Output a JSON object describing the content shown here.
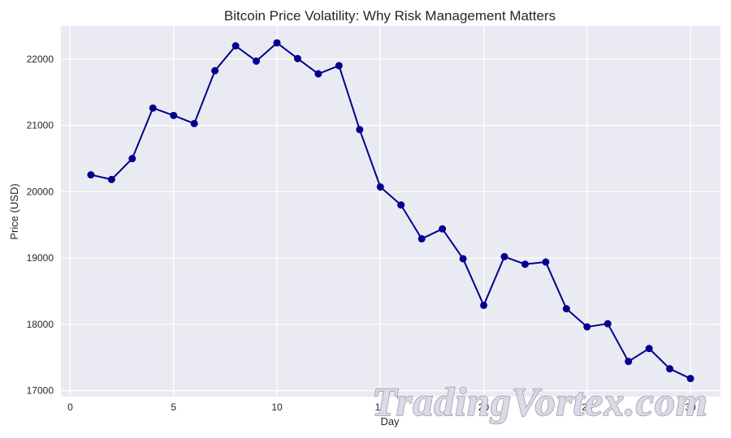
{
  "chart_data": {
    "type": "line",
    "title": "Bitcoin Price Volatility: Why Risk Management Matters",
    "xlabel": "Day",
    "ylabel": "Price (USD)",
    "x": [
      1,
      2,
      3,
      4,
      5,
      6,
      7,
      8,
      9,
      10,
      11,
      12,
      13,
      14,
      15,
      16,
      17,
      18,
      19,
      20,
      21,
      22,
      23,
      24,
      25,
      26,
      27,
      28,
      29,
      30
    ],
    "series": [
      {
        "name": "Price",
        "color": "#00008b",
        "marker": "circle",
        "values": [
          20255,
          20185,
          20500,
          21262,
          21150,
          21028,
          21825,
          22200,
          21970,
          22245,
          22008,
          21778,
          21902,
          20937,
          20072,
          19800,
          19290,
          19440,
          18990,
          18287,
          19021,
          18907,
          18940,
          18235,
          17962,
          18010,
          17440,
          17636,
          17330,
          17183
        ]
      }
    ],
    "xticks": [
      "0",
      "5",
      "10",
      "15",
      "20",
      "25",
      "30"
    ],
    "yticks": [
      "17000",
      "18000",
      "19000",
      "20000",
      "21000",
      "22000"
    ],
    "xlim": [
      -0.45,
      31.45
    ],
    "ylim": [
      16910,
      22500
    ],
    "grid": true,
    "legend": null,
    "background": "#eaeaf2",
    "gridcolor": "#ffffff"
  },
  "watermark": {
    "text": "TradingVortex.com"
  }
}
